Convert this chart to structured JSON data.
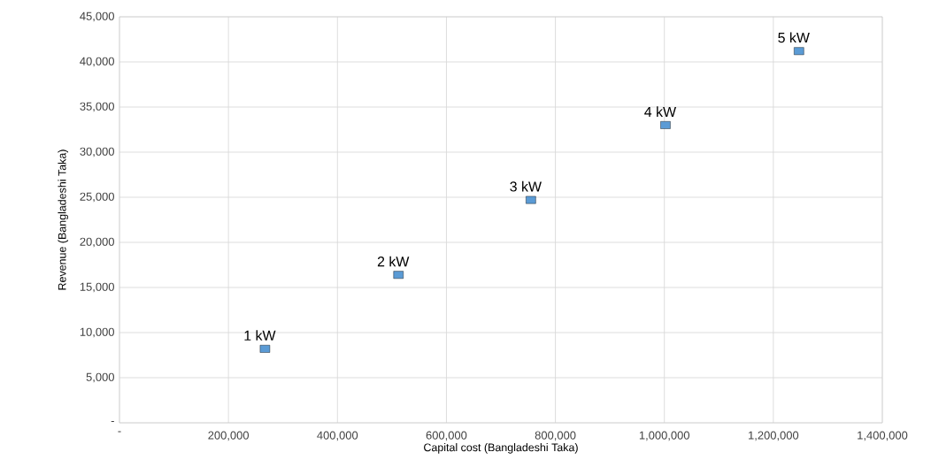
{
  "chart_data": {
    "type": "scatter",
    "xlabel": "Capital cost (Bangladeshi Taka)",
    "ylabel": "Revenue (Bangladeshi Taka)",
    "x": [
      267000,
      512000,
      755000,
      1002000,
      1247000
    ],
    "values": [
      8200,
      16400,
      24700,
      33000,
      41200
    ],
    "color": "#5b9bd5",
    "marker": "square",
    "grid": true,
    "xlim": [
      0,
      1400000
    ],
    "ylim": [
      0,
      45000
    ],
    "xticks": [
      {
        "value": 0,
        "label": "-"
      },
      {
        "value": 200000,
        "label": "200,000"
      },
      {
        "value": 400000,
        "label": "400,000"
      },
      {
        "value": 600000,
        "label": "600,000"
      },
      {
        "value": 800000,
        "label": "800,000"
      },
      {
        "value": 1000000,
        "label": "1,000,000"
      },
      {
        "value": 1200000,
        "label": "1,200,000"
      },
      {
        "value": 1400000,
        "label": "1,400,000"
      }
    ],
    "yticks": [
      {
        "value": 0,
        "label": "-"
      },
      {
        "value": 5000,
        "label": "5,000"
      },
      {
        "value": 10000,
        "label": "10,000"
      },
      {
        "value": 15000,
        "label": "15,000"
      },
      {
        "value": 20000,
        "label": "20,000"
      },
      {
        "value": 25000,
        "label": "25,000"
      },
      {
        "value": 30000,
        "label": "30,000"
      },
      {
        "value": 35000,
        "label": "35,000"
      },
      {
        "value": 40000,
        "label": "40,000"
      },
      {
        "value": 45000,
        "label": "45,000"
      }
    ],
    "annotations": [
      {
        "text": "1 kW",
        "x": 267000,
        "y": 8200
      },
      {
        "text": "2 kW",
        "x": 512000,
        "y": 16400
      },
      {
        "text": "3 kW",
        "x": 755000,
        "y": 24700
      },
      {
        "text": "4 kW",
        "x": 1002000,
        "y": 33000
      },
      {
        "text": "5 kW",
        "x": 1247000,
        "y": 41200
      }
    ]
  }
}
